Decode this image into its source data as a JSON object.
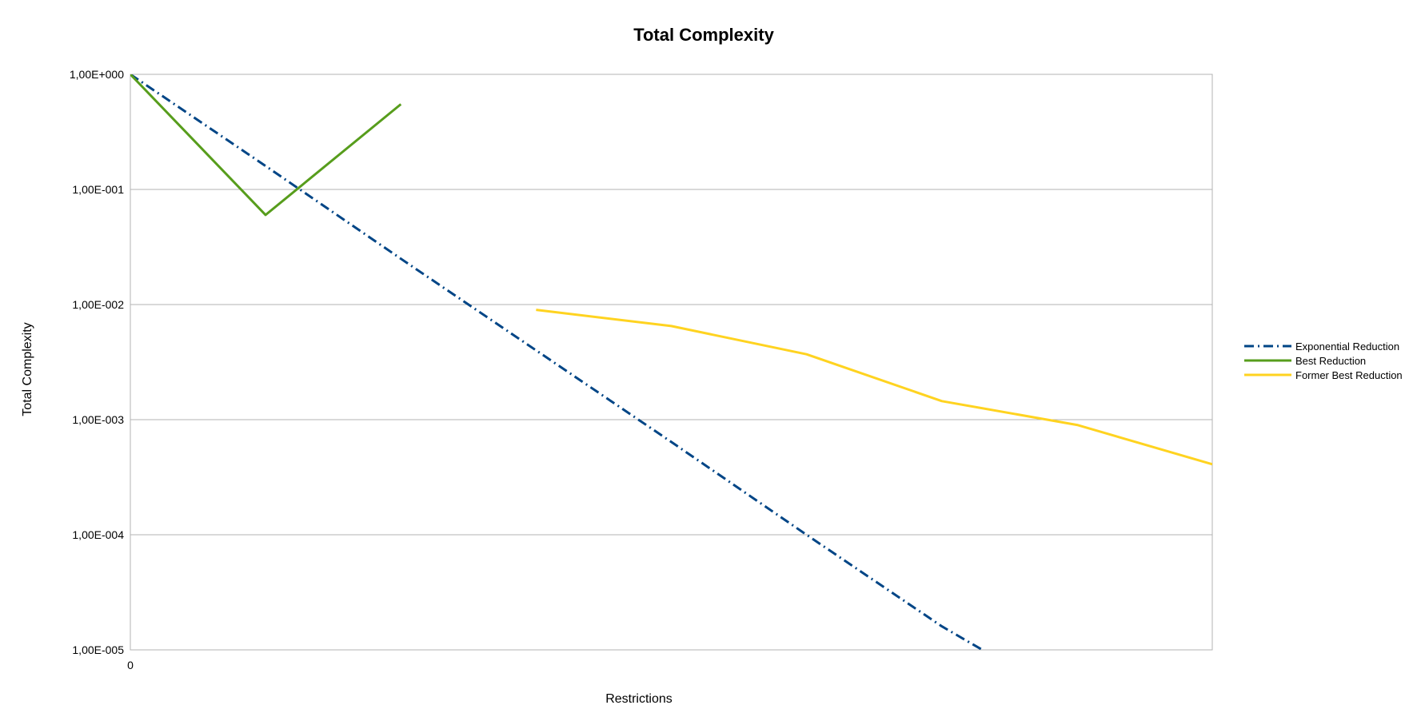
{
  "chart_data": {
    "type": "line",
    "title": "Total Complexity",
    "xlabel": "Restrictions",
    "ylabel": "Total Complexity",
    "y_scale": "log",
    "ylim": [
      1e-05,
      1
    ],
    "y_ticks": [
      1,
      0.1,
      0.01,
      0.001,
      0.0001,
      1e-05
    ],
    "y_tick_labels": [
      "1,00E+000",
      "1,00E-001",
      "1,00E-002",
      "1,00E-003",
      "1,00E-004",
      "1,00E-005"
    ],
    "x_tick_labels": [
      "0"
    ],
    "xlim": [
      0,
      8
    ],
    "grid": "horizontal",
    "legend_position": "right",
    "series": [
      {
        "name": "Exponential Reduction",
        "color": "#004586",
        "style": "dash-dot",
        "x": [
          0,
          1,
          2,
          3,
          4,
          5,
          6,
          6.3
        ],
        "y": [
          1,
          0.16,
          0.025,
          0.004,
          0.00064,
          0.0001,
          1.6e-05,
          1e-05
        ]
      },
      {
        "name": "Best Reduction",
        "color": "#579d1c",
        "style": "solid",
        "x": [
          0,
          1,
          2
        ],
        "y": [
          1,
          0.06,
          0.55
        ]
      },
      {
        "name": "Former Best Reduction",
        "color": "#ffd320",
        "style": "solid",
        "x": [
          3,
          4,
          5,
          6,
          7,
          8
        ],
        "y": [
          0.009,
          0.0065,
          0.0037,
          0.00145,
          0.0009,
          0.00041
        ]
      }
    ]
  }
}
